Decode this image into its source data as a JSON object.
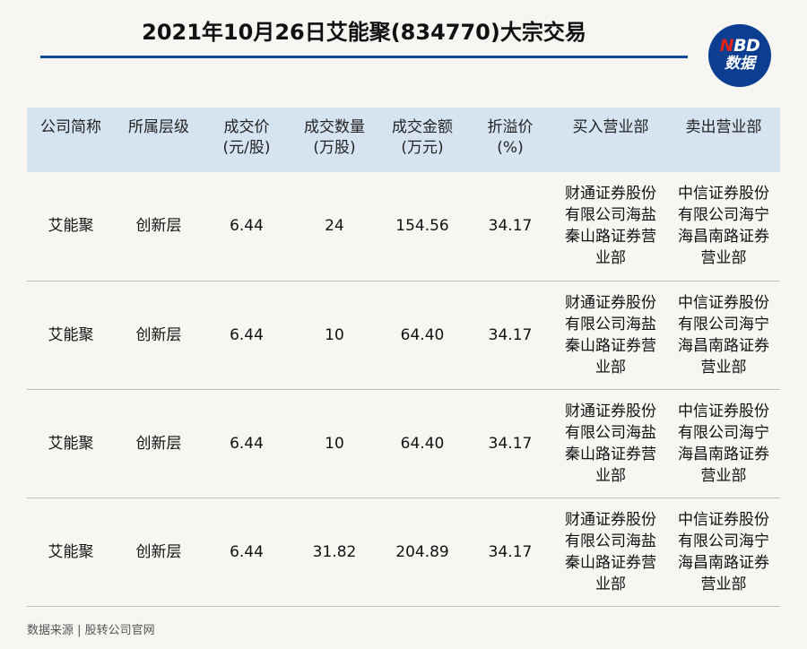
{
  "title": "2021年10月26日艾能聚(834770)大宗交易",
  "logo": {
    "accent_letter": "N",
    "letters_rest": "BD",
    "subtitle": "数据"
  },
  "colors": {
    "background": "#f8f6f2",
    "title_rule": "#0d4a9e",
    "header_bg": "#d6e4f2",
    "logo_bg": "#0b3d91",
    "logo_accent": "#e2231a"
  },
  "table": {
    "headers": [
      {
        "line1": "公司简称",
        "line2": ""
      },
      {
        "line1": "所属层级",
        "line2": ""
      },
      {
        "line1": "成交价",
        "line2": "(元/股)"
      },
      {
        "line1": "成交数量",
        "line2": "(万股)"
      },
      {
        "line1": "成交金额",
        "line2": "(万元)"
      },
      {
        "line1": "折溢价",
        "line2": "(%)"
      },
      {
        "line1": "买入营业部",
        "line2": ""
      },
      {
        "line1": "卖出营业部",
        "line2": ""
      }
    ],
    "rows": [
      {
        "company": "艾能聚",
        "tier": "创新层",
        "price": "6.44",
        "volume": "24",
        "amount": "154.56",
        "premium": "34.17",
        "buyer": "财通证券股份有限公司海盐秦山路证券营业部",
        "seller": "中信证券股份有限公司海宁海昌南路证券营业部"
      },
      {
        "company": "艾能聚",
        "tier": "创新层",
        "price": "6.44",
        "volume": "10",
        "amount": "64.40",
        "premium": "34.17",
        "buyer": "财通证券股份有限公司海盐秦山路证券营业部",
        "seller": "中信证券股份有限公司海宁海昌南路证券营业部"
      },
      {
        "company": "艾能聚",
        "tier": "创新层",
        "price": "6.44",
        "volume": "10",
        "amount": "64.40",
        "premium": "34.17",
        "buyer": "财通证券股份有限公司海盐秦山路证券营业部",
        "seller": "中信证券股份有限公司海宁海昌南路证券营业部"
      },
      {
        "company": "艾能聚",
        "tier": "创新层",
        "price": "6.44",
        "volume": "31.82",
        "amount": "204.89",
        "premium": "34.17",
        "buyer": "财通证券股份有限公司海盐秦山路证券营业部",
        "seller": "中信证券股份有限公司海宁海昌南路证券营业部"
      }
    ]
  },
  "source": "数据来源 | 股转公司官网"
}
